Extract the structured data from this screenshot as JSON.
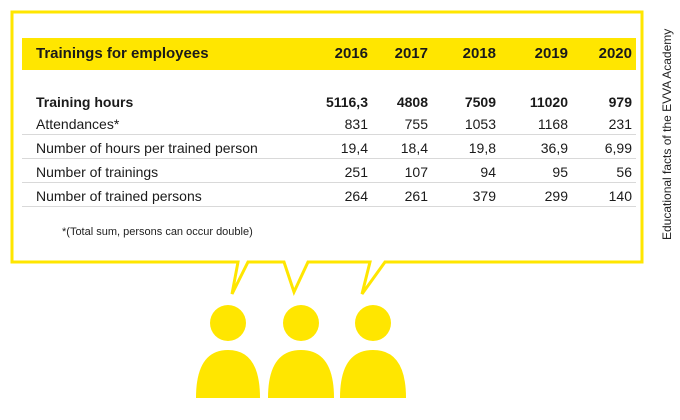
{
  "table": {
    "title": "Trainings for employees",
    "years": [
      "2016",
      "2017",
      "2018",
      "2019",
      "2020"
    ],
    "rows": [
      {
        "label": "Training hours",
        "values": [
          "5116,3",
          "4808",
          "7509",
          "11020",
          "979"
        ]
      },
      {
        "label": "Attendances*",
        "values": [
          "831",
          "755",
          "1053",
          "1168",
          "231"
        ]
      },
      {
        "label": "Number of hours per trained person",
        "values": [
          "19,4",
          "18,4",
          "19,8",
          "36,9",
          "6,99"
        ]
      },
      {
        "label": "Number of trainings",
        "values": [
          "251",
          "107",
          "94",
          "95",
          "56"
        ]
      },
      {
        "label": "Number of trained persons",
        "values": [
          "264",
          "261",
          "379",
          "299",
          "140"
        ]
      }
    ]
  },
  "footnote": "*(Total sum, persons can occur double)",
  "side_label": "Educational facts of the EVVA Academy",
  "colors": {
    "accent": "#ffe600",
    "text": "#1a1a1a"
  }
}
